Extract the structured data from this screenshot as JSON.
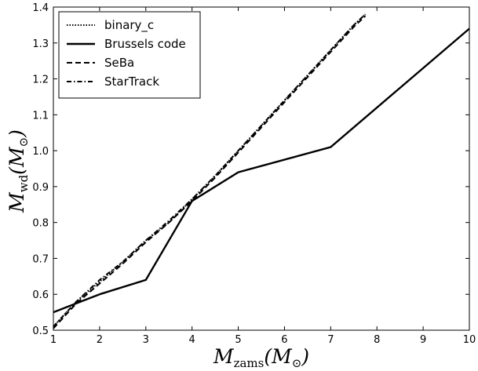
{
  "chart_data": {
    "type": "line",
    "x_axis": {
      "symbol": "M",
      "subscript": "zams",
      "unit": "(M",
      "unit_sub": "⊙",
      "close": ")"
    },
    "y_axis": {
      "symbol": "M",
      "subscript": "wd",
      "unit": "(M",
      "unit_sub": "⊙",
      "close": ")"
    },
    "xlim": [
      1,
      10
    ],
    "ylim": [
      0.5,
      1.4
    ],
    "xticks": [
      1,
      2,
      3,
      4,
      5,
      6,
      7,
      8,
      9,
      10
    ],
    "yticks": [
      0.5,
      0.6,
      0.7,
      0.8,
      0.9,
      1.0,
      1.1,
      1.2,
      1.3,
      1.4
    ],
    "ytick_labels": [
      "0.5",
      "0.6",
      "0.7",
      "0.8",
      "0.9",
      "1.0",
      "1.1",
      "1.2",
      "1.3",
      "1.4"
    ],
    "grid": false,
    "legend_position": "top-left",
    "series": [
      {
        "name": "binary_c",
        "style": "dotted",
        "x": [
          1.0,
          1.5,
          2.0,
          2.5,
          3.0,
          3.5,
          4.0,
          4.5,
          5.0,
          5.5,
          6.0,
          6.5,
          7.0,
          7.5,
          7.75
        ],
        "y": [
          0.51,
          0.58,
          0.635,
          0.69,
          0.75,
          0.8,
          0.865,
          0.93,
          1.0,
          1.07,
          1.14,
          1.21,
          1.28,
          1.35,
          1.38
        ]
      },
      {
        "name": "Brussels code",
        "style": "solid",
        "x": [
          1.0,
          2.0,
          3.0,
          4.0,
          5.0,
          7.0,
          10.0
        ],
        "y": [
          0.55,
          0.6,
          0.64,
          0.86,
          0.94,
          1.01,
          1.34
        ]
      },
      {
        "name": "SeBa",
        "style": "dashed",
        "x": [
          1.0,
          1.5,
          2.0,
          2.5,
          3.0,
          3.5,
          4.0,
          4.5,
          5.0,
          5.5,
          6.0,
          6.5,
          7.0,
          7.5,
          7.75
        ],
        "y": [
          0.505,
          0.575,
          0.63,
          0.685,
          0.745,
          0.8,
          0.86,
          0.925,
          0.995,
          1.065,
          1.135,
          1.205,
          1.275,
          1.345,
          1.375
        ]
      },
      {
        "name": "StarTrack",
        "style": "dashdot",
        "x": [
          1.0,
          1.5,
          2.0,
          2.5,
          3.0,
          3.5,
          4.0,
          4.5,
          5.0,
          5.5,
          6.0,
          6.5,
          7.0,
          7.5,
          7.75
        ],
        "y": [
          0.51,
          0.58,
          0.64,
          0.69,
          0.75,
          0.805,
          0.865,
          0.93,
          1.0,
          1.07,
          1.14,
          1.21,
          1.28,
          1.35,
          1.38
        ]
      }
    ]
  }
}
